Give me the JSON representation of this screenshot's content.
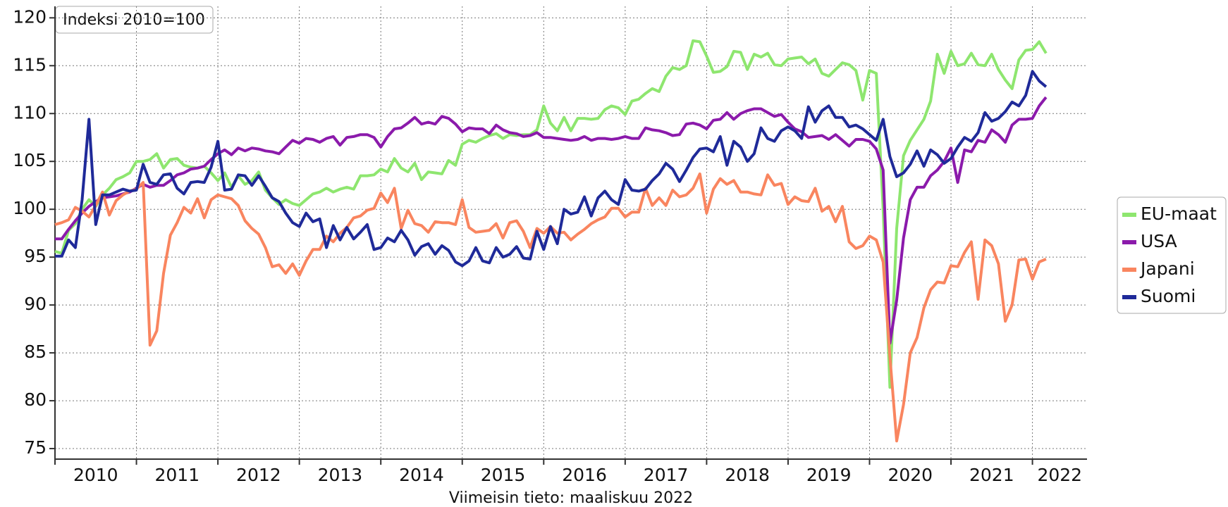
{
  "chart_data": {
    "type": "line",
    "title": "Indeksi 2010=100",
    "xlabel": "Viimeisin tieto: maaliskuu 2022",
    "x": [
      2010,
      2010.083,
      2010.167,
      2010.25,
      2010.333,
      2010.417,
      2010.5,
      2010.583,
      2010.667,
      2010.75,
      2010.833,
      2010.917,
      2011,
      2011.083,
      2011.167,
      2011.25,
      2011.333,
      2011.417,
      2011.5,
      2011.583,
      2011.667,
      2011.75,
      2011.833,
      2011.917,
      2012,
      2012.083,
      2012.167,
      2012.25,
      2012.333,
      2012.417,
      2012.5,
      2012.583,
      2012.667,
      2012.75,
      2012.833,
      2012.917,
      2013,
      2013.083,
      2013.167,
      2013.25,
      2013.333,
      2013.417,
      2013.5,
      2013.583,
      2013.667,
      2013.75,
      2013.833,
      2013.917,
      2014,
      2014.083,
      2014.167,
      2014.25,
      2014.333,
      2014.417,
      2014.5,
      2014.583,
      2014.667,
      2014.75,
      2014.833,
      2014.917,
      2015,
      2015.083,
      2015.167,
      2015.25,
      2015.333,
      2015.417,
      2015.5,
      2015.583,
      2015.667,
      2015.75,
      2015.833,
      2015.917,
      2016,
      2016.083,
      2016.167,
      2016.25,
      2016.333,
      2016.417,
      2016.5,
      2016.583,
      2016.667,
      2016.75,
      2016.833,
      2016.917,
      2017,
      2017.083,
      2017.167,
      2017.25,
      2017.333,
      2017.417,
      2017.5,
      2017.583,
      2017.667,
      2017.75,
      2017.833,
      2017.917,
      2018,
      2018.083,
      2018.167,
      2018.25,
      2018.333,
      2018.417,
      2018.5,
      2018.583,
      2018.667,
      2018.75,
      2018.833,
      2018.917,
      2019,
      2019.083,
      2019.167,
      2019.25,
      2019.333,
      2019.417,
      2019.5,
      2019.583,
      2019.667,
      2019.75,
      2019.833,
      2019.917,
      2020,
      2020.083,
      2020.167,
      2020.25,
      2020.333,
      2020.417,
      2020.5,
      2020.583,
      2020.667,
      2020.75,
      2020.833,
      2020.917,
      2021,
      2021.083,
      2021.167,
      2021.25,
      2021.333,
      2021.417,
      2021.5,
      2021.583,
      2021.667,
      2021.75,
      2021.833,
      2021.917,
      2022,
      2022.083,
      2022.167
    ],
    "series": [
      {
        "name": "EU-maat",
        "color": "#8ee66f",
        "values": [
          95.6,
          95.4,
          97.8,
          98.5,
          100,
          101,
          100.3,
          101.5,
          102.2,
          103.1,
          103.4,
          103.8,
          105,
          105,
          105.2,
          105.8,
          104.3,
          105.2,
          105.3,
          104.6,
          104.4,
          104.3,
          104.5,
          103.8,
          103,
          103.8,
          102.3,
          103.5,
          102.6,
          103,
          103.9,
          102,
          101.2,
          100.5,
          101,
          100.6,
          100.4,
          101,
          101.6,
          101.8,
          102.2,
          101.8,
          102.1,
          102.3,
          102.1,
          103.5,
          103.5,
          103.6,
          104.2,
          103.9,
          105.3,
          104.3,
          103.9,
          104.8,
          103.1,
          103.9,
          103.8,
          103.7,
          105.1,
          104.6,
          106.8,
          107.2,
          107,
          107.4,
          107.7,
          107.9,
          107.4,
          107.8,
          107.7,
          107.8,
          107.8,
          108.3,
          110.8,
          109,
          108.2,
          109.6,
          108.2,
          109.5,
          109.5,
          109.4,
          109.5,
          110.4,
          110.8,
          110.6,
          109.9,
          111.3,
          111.5,
          112.1,
          112.6,
          112.3,
          113.9,
          114.8,
          114.6,
          115,
          117.6,
          117.5,
          116,
          114.3,
          114.4,
          114.9,
          116.5,
          116.4,
          114.6,
          116.2,
          115.9,
          116.3,
          115.1,
          115,
          115.7,
          115.8,
          115.9,
          115.2,
          115.7,
          114.2,
          113.9,
          114.6,
          115.3,
          115.1,
          114.5,
          111.4,
          114.5,
          114.2,
          100,
          81.4,
          98,
          105.6,
          107.2,
          108.3,
          109.4,
          111.3,
          116.2,
          114.2,
          116.5,
          115,
          115.2,
          116.3,
          115.1,
          115,
          116.2,
          114.6,
          113.5,
          112.6,
          115.6,
          116.6,
          116.7,
          117.5,
          116.3
        ]
      },
      {
        "name": "USA",
        "color": "#8b1aab",
        "values": [
          96.9,
          96.9,
          97.9,
          98.8,
          99.6,
          100.3,
          100.8,
          101.2,
          101.3,
          101.4,
          101.6,
          101.8,
          102.2,
          102.6,
          102.3,
          102.5,
          102.5,
          103,
          103.6,
          103.8,
          104.2,
          104.3,
          104.5,
          105.2,
          105.8,
          106.2,
          105.7,
          106.4,
          106.1,
          106.4,
          106.3,
          106.1,
          106,
          105.8,
          106.5,
          107.2,
          106.9,
          107.4,
          107.3,
          107,
          107.4,
          107.6,
          106.7,
          107.5,
          107.6,
          107.8,
          107.8,
          107.5,
          106.5,
          107.6,
          108.4,
          108.5,
          109,
          109.6,
          108.9,
          109.1,
          108.9,
          109.7,
          109.5,
          108.9,
          108.1,
          108.5,
          108.4,
          108.4,
          107.9,
          108.8,
          108.3,
          108,
          107.9,
          107.6,
          107.7,
          108,
          107.5,
          107.5,
          107.4,
          107.3,
          107.2,
          107.3,
          107.6,
          107.2,
          107.4,
          107.4,
          107.3,
          107.4,
          107.6,
          107.4,
          107.4,
          108.5,
          108.3,
          108.2,
          108,
          107.7,
          107.8,
          108.9,
          109,
          108.8,
          108.4,
          109.3,
          109.4,
          110.1,
          109.4,
          110,
          110.3,
          110.5,
          110.5,
          110.1,
          109.7,
          109.9,
          109.1,
          108.4,
          108.1,
          107.5,
          107.6,
          107.7,
          107.3,
          107.8,
          107.2,
          106.6,
          107.3,
          107.3,
          107.1,
          106.3,
          104.1,
          86,
          90.5,
          97,
          101,
          102.3,
          102.3,
          103.5,
          104.1,
          105,
          106.4,
          102.8,
          106.2,
          106,
          107.2,
          107,
          108.3,
          107.8,
          107,
          108.8,
          109.4,
          109.4,
          109.5,
          110.8,
          111.7
        ]
      },
      {
        "name": "Japani",
        "color": "#f9855f",
        "values": [
          98.4,
          98.6,
          98.9,
          100.2,
          99.8,
          99.2,
          100.4,
          101.8,
          99.4,
          100.9,
          101.5,
          101.9,
          102.1,
          102.8,
          85.8,
          87.3,
          93.3,
          97.3,
          98.6,
          100.2,
          99.6,
          101.1,
          99.1,
          101,
          101.5,
          101.3,
          101.1,
          100.4,
          98.8,
          98,
          97.4,
          96,
          94,
          94.2,
          93.3,
          94.3,
          93.1,
          94.6,
          95.8,
          95.8,
          97.2,
          96.6,
          97.5,
          98.1,
          99.1,
          99.3,
          99.9,
          100.1,
          101.7,
          100.7,
          102.2,
          98,
          99.9,
          98.5,
          98.3,
          97.6,
          98.7,
          98.6,
          98.6,
          98.4,
          101,
          98.1,
          97.6,
          97.7,
          97.8,
          98.5,
          97,
          98.6,
          98.8,
          97.7,
          96,
          98,
          97.5,
          98.2,
          97.5,
          97.6,
          96.8,
          97.4,
          97.9,
          98.5,
          98.9,
          99.2,
          100.1,
          100.1,
          99.2,
          99.7,
          99.7,
          102.2,
          100.4,
          101.2,
          100.4,
          102,
          101.3,
          101.5,
          102.2,
          103.7,
          99.6,
          102.1,
          103.2,
          102.6,
          103,
          101.8,
          101.8,
          101.6,
          101.5,
          103.6,
          102.5,
          102.7,
          100.5,
          101.3,
          100.9,
          100.8,
          102.2,
          99.8,
          100.3,
          98.7,
          100.3,
          96.6,
          95.9,
          96.2,
          97.2,
          96.8,
          94.5,
          84.6,
          75.8,
          79.6,
          85,
          86.6,
          89.7,
          91.6,
          92.4,
          92.3,
          94.1,
          94,
          95.5,
          96.6,
          90.6,
          96.8,
          96.2,
          94.3,
          88.3,
          90,
          94.7,
          94.8,
          92.7,
          94.5,
          94.8
        ]
      },
      {
        "name": "Suomi",
        "color": "#1f2a99",
        "values": [
          95.1,
          95.1,
          96.8,
          96,
          101,
          109.4,
          98.4,
          101.5,
          101.5,
          101.8,
          102.1,
          101.9,
          102,
          104.7,
          102.8,
          102.6,
          103.6,
          103.7,
          102.2,
          101.6,
          102.8,
          102.9,
          102.8,
          104.4,
          107.1,
          102,
          102.1,
          103.6,
          103.5,
          102.5,
          103.5,
          102.4,
          101.2,
          100.8,
          99.6,
          98.6,
          98.2,
          99.6,
          98.7,
          99,
          96,
          98.3,
          96.8,
          98.1,
          96.9,
          97.6,
          98.4,
          95.8,
          96,
          97,
          96.6,
          97.8,
          96.8,
          95.2,
          96.1,
          96.4,
          95.3,
          96.2,
          95.7,
          94.5,
          94.1,
          94.6,
          96,
          94.6,
          94.4,
          96,
          95,
          95.3,
          96.1,
          94.9,
          94.8,
          97.7,
          95.8,
          98.2,
          96.4,
          100,
          99.5,
          99.7,
          101.3,
          99.3,
          101.2,
          101.9,
          101,
          100.5,
          103.1,
          102,
          101.9,
          102.1,
          103,
          103.7,
          104.8,
          104.2,
          102.9,
          104.1,
          105.4,
          106.3,
          106.4,
          106,
          107.6,
          104.6,
          107.1,
          106.5,
          105,
          105.8,
          108.5,
          107.4,
          107.1,
          108.2,
          108.6,
          108.2,
          107.4,
          110.7,
          109.1,
          110.3,
          110.8,
          109.6,
          109.6,
          108.6,
          108.8,
          108.4,
          107.8,
          107.2,
          109.4,
          105.5,
          103.4,
          103.8,
          104.7,
          106.1,
          104.5,
          106.2,
          105.7,
          104.8,
          105.3,
          106.5,
          107.5,
          107.1,
          108,
          110.1,
          109.2,
          109.5,
          110.2,
          111.2,
          110.8,
          111.9,
          114.4,
          113.4,
          112.8
        ]
      }
    ],
    "xlim": [
      2010,
      2022.67
    ],
    "xticks": [
      2010,
      2011,
      2012,
      2013,
      2014,
      2015,
      2016,
      2017,
      2018,
      2019,
      2020,
      2021,
      2022
    ],
    "ylim": [
      73.9,
      121.2
    ],
    "yticks": [
      75,
      80,
      85,
      90,
      95,
      100,
      105,
      110,
      115,
      120
    ],
    "grid": true,
    "legend": "right"
  }
}
